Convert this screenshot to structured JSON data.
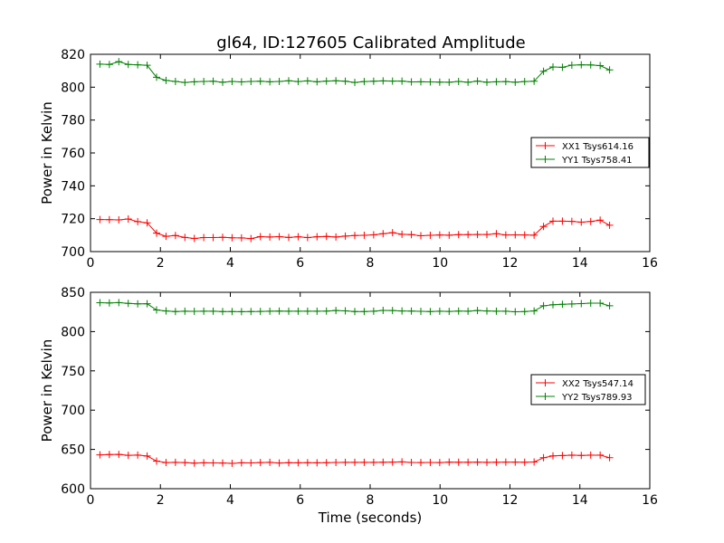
{
  "title": "gl64, ID:127605 Calibrated Amplitude",
  "chart_data": [
    {
      "type": "line",
      "ylabel": "Power in Kelvin",
      "xlim": [
        0,
        16
      ],
      "ylim": [
        700,
        820
      ],
      "xticks": [
        0,
        2,
        4,
        6,
        8,
        10,
        12,
        14,
        16
      ],
      "yticks": [
        700,
        720,
        740,
        760,
        780,
        800,
        820
      ],
      "grid": false,
      "legend_position": "right",
      "x": [
        0.27,
        0.54,
        0.81,
        1.08,
        1.35,
        1.62,
        1.89,
        2.16,
        2.43,
        2.7,
        2.97,
        3.24,
        3.51,
        3.78,
        4.05,
        4.32,
        4.59,
        4.86,
        5.13,
        5.4,
        5.67,
        5.94,
        6.21,
        6.48,
        6.75,
        7.02,
        7.29,
        7.56,
        7.83,
        8.1,
        8.37,
        8.64,
        8.91,
        9.18,
        9.45,
        9.72,
        9.99,
        10.26,
        10.53,
        10.8,
        11.07,
        11.34,
        11.61,
        11.88,
        12.15,
        12.42,
        12.69,
        12.96,
        13.23,
        13.5,
        13.77,
        14.04,
        14.31,
        14.58,
        14.85
      ],
      "series": [
        {
          "name": "XX1 Tsys614.16",
          "color": "#ff0000",
          "values": [
            719.5,
            719.4,
            719.3,
            719.8,
            718.2,
            717.5,
            711.2,
            709.3,
            709.8,
            708.6,
            708.0,
            708.5,
            708.5,
            708.7,
            708.4,
            708.3,
            707.9,
            709.1,
            708.9,
            709.1,
            708.6,
            709.0,
            708.5,
            709.0,
            709.2,
            708.9,
            709.4,
            709.8,
            709.9,
            710.2,
            710.9,
            711.5,
            710.5,
            710.3,
            709.6,
            709.9,
            710.1,
            710.0,
            710.3,
            710.3,
            710.4,
            710.4,
            710.9,
            710.1,
            710.2,
            710.1,
            710.0,
            715.3,
            718.5,
            718.5,
            718.4,
            717.9,
            718.3,
            719.1,
            716.0
          ]
        },
        {
          "name": "YY1 Tsys758.41",
          "color": "#008000",
          "values": [
            814.0,
            813.8,
            815.5,
            813.8,
            813.6,
            813.3,
            806.0,
            804.1,
            803.5,
            802.9,
            803.3,
            803.5,
            803.6,
            803.0,
            803.5,
            803.2,
            803.5,
            803.6,
            803.3,
            803.5,
            803.9,
            803.4,
            803.8,
            803.3,
            803.7,
            803.9,
            803.6,
            802.9,
            803.4,
            803.6,
            803.8,
            803.7,
            803.7,
            803.2,
            803.3,
            803.2,
            803.1,
            803.0,
            803.5,
            803.0,
            803.7,
            803.0,
            803.3,
            803.4,
            803.0,
            803.4,
            803.6,
            809.7,
            812.3,
            812.1,
            813.4,
            813.6,
            813.5,
            813.1,
            810.5
          ]
        }
      ]
    },
    {
      "type": "line",
      "xlabel": "Time (seconds)",
      "ylabel": "Power in Kelvin",
      "xlim": [
        0,
        16
      ],
      "ylim": [
        600,
        850
      ],
      "xticks": [
        0,
        2,
        4,
        6,
        8,
        10,
        12,
        14,
        16
      ],
      "yticks": [
        600,
        650,
        700,
        750,
        800,
        850
      ],
      "grid": false,
      "legend_position": "right",
      "x": [
        0.27,
        0.54,
        0.81,
        1.08,
        1.35,
        1.62,
        1.89,
        2.16,
        2.43,
        2.7,
        2.97,
        3.24,
        3.51,
        3.78,
        4.05,
        4.32,
        4.59,
        4.86,
        5.13,
        5.4,
        5.67,
        5.94,
        6.21,
        6.48,
        6.75,
        7.02,
        7.29,
        7.56,
        7.83,
        8.1,
        8.37,
        8.64,
        8.91,
        9.18,
        9.45,
        9.72,
        9.99,
        10.26,
        10.53,
        10.8,
        11.07,
        11.34,
        11.61,
        11.88,
        12.15,
        12.42,
        12.69,
        12.96,
        13.23,
        13.5,
        13.77,
        14.04,
        14.31,
        14.58,
        14.85
      ],
      "series": [
        {
          "name": "XX2 Tsys547.14",
          "color": "#ff0000",
          "values": [
            643.0,
            643.5,
            643.6,
            642.5,
            642.8,
            641.6,
            635.2,
            633.2,
            633.5,
            633.2,
            632.6,
            633.0,
            632.8,
            632.7,
            632.3,
            633.0,
            632.8,
            633.2,
            633.6,
            632.7,
            633.1,
            633.0,
            633.1,
            633.0,
            633.1,
            633.4,
            633.6,
            633.6,
            633.5,
            633.5,
            633.7,
            633.9,
            634.1,
            633.4,
            633.3,
            633.4,
            633.3,
            633.8,
            633.7,
            633.7,
            633.9,
            633.5,
            633.7,
            633.8,
            633.8,
            633.7,
            634.0,
            639.4,
            641.8,
            642.2,
            642.7,
            642.3,
            642.7,
            642.7,
            639.5
          ]
        },
        {
          "name": "YY2 Tsys789.93",
          "color": "#008000",
          "values": [
            836.8,
            836.4,
            836.9,
            835.9,
            835.3,
            835.4,
            827.5,
            826.2,
            825.5,
            825.9,
            825.8,
            826.0,
            826.0,
            825.5,
            825.5,
            825.4,
            825.5,
            825.6,
            826.0,
            826.1,
            825.9,
            826.0,
            825.9,
            826.0,
            826.1,
            826.8,
            826.4,
            825.5,
            825.5,
            825.9,
            826.9,
            826.8,
            826.3,
            826.1,
            825.8,
            825.5,
            826.0,
            825.7,
            826.1,
            826.0,
            826.8,
            826.3,
            826.0,
            825.9,
            825.3,
            825.5,
            826.3,
            832.8,
            834.2,
            834.8,
            835.2,
            835.6,
            836.2,
            836.2,
            832.8
          ]
        }
      ]
    }
  ]
}
